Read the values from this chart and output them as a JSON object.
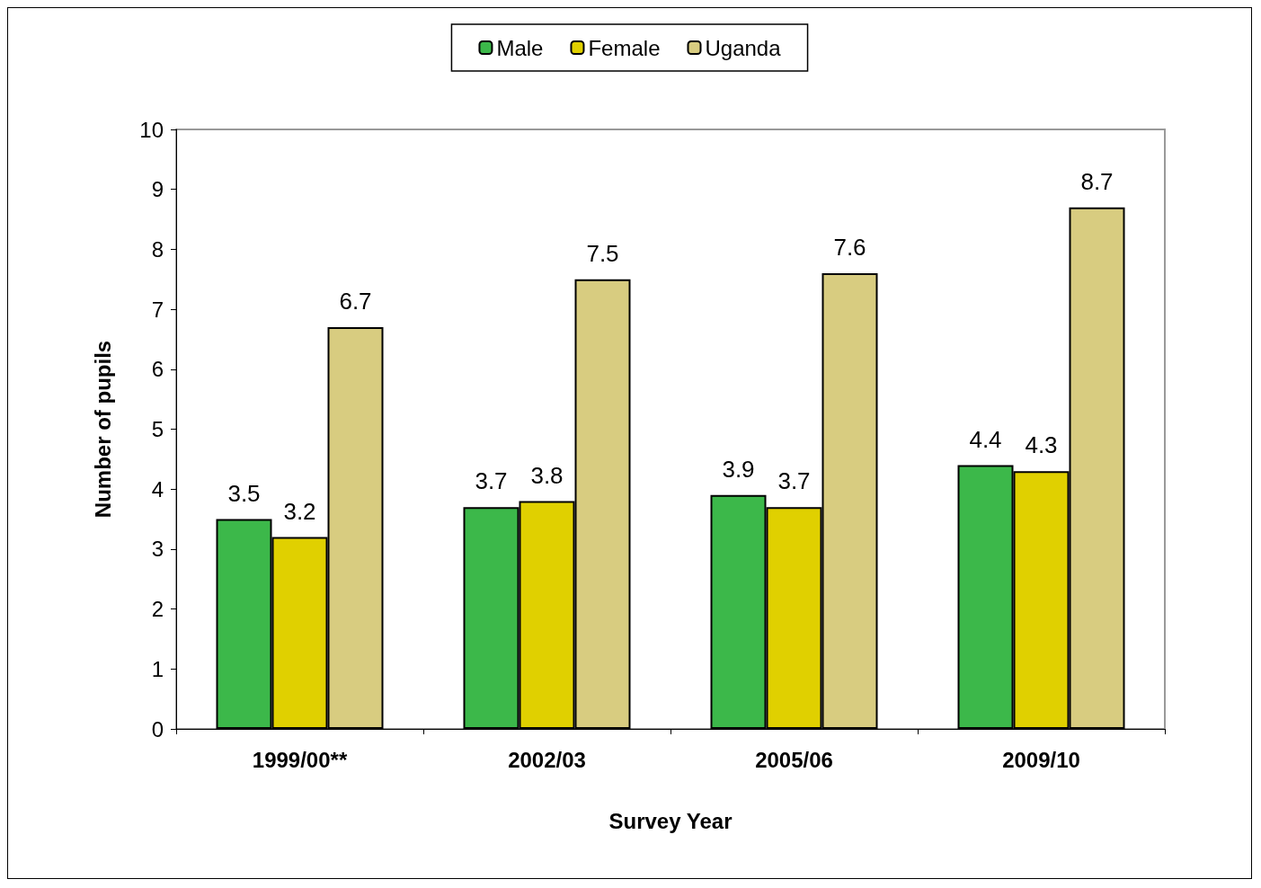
{
  "chart_data": {
    "type": "bar",
    "xlabel": "Survey Year",
    "ylabel": "Number of pupils",
    "categories": [
      "1999/00**",
      "2002/03",
      "2005/06",
      "2009/10"
    ],
    "series": [
      {
        "name": "Male",
        "color": "#3cb84a",
        "values": [
          3.5,
          3.7,
          3.9,
          4.4
        ]
      },
      {
        "name": "Female",
        "color": "#e0d000",
        "values": [
          3.2,
          3.8,
          3.7,
          4.3
        ]
      },
      {
        "name": "Uganda",
        "color": "#d8cc80",
        "values": [
          6.7,
          7.5,
          7.6,
          8.7
        ]
      }
    ],
    "ylim": [
      0,
      10
    ],
    "yticks": [
      0,
      1,
      2,
      3,
      4,
      5,
      6,
      7,
      8,
      9,
      10
    ],
    "grid": false,
    "legend": "top",
    "data_labels": true
  }
}
